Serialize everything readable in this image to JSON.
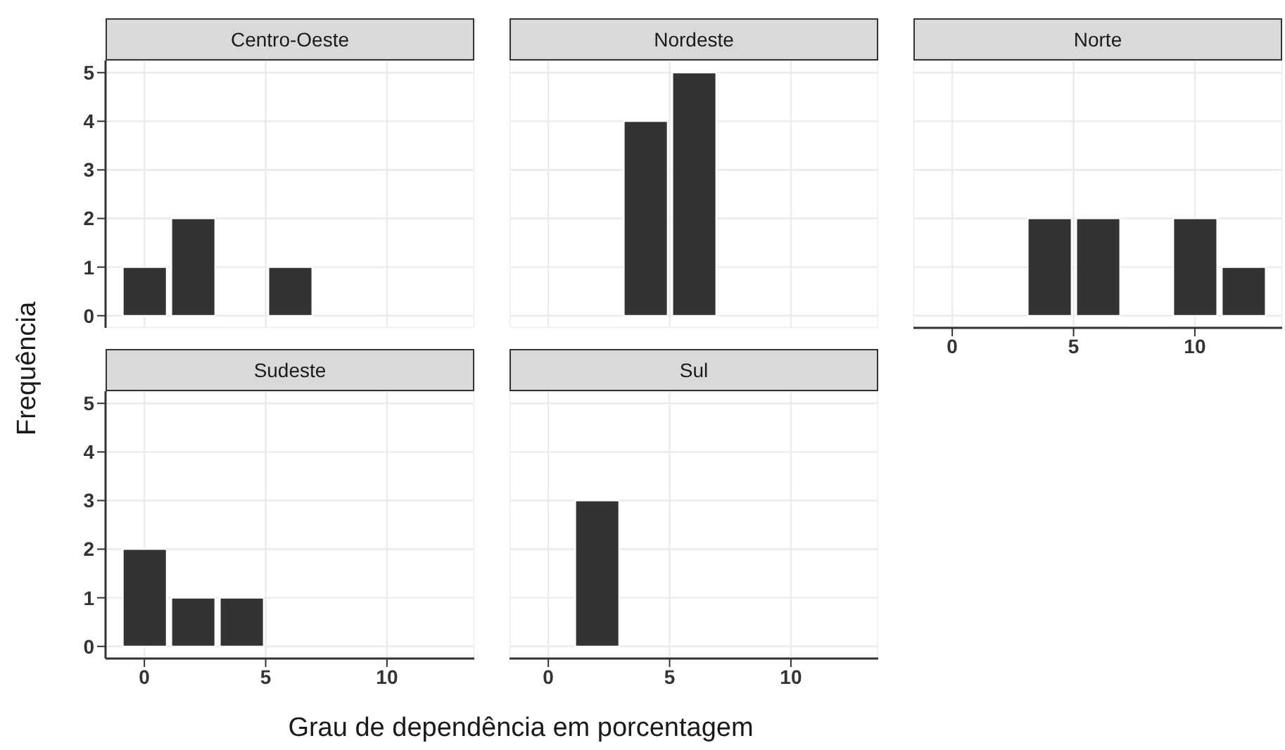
{
  "chart_data": [
    {
      "type": "histogram",
      "title": "Centro-Oeste",
      "ylabel": "Frequência",
      "bins": [
        -1,
        1,
        3,
        5,
        7,
        9,
        11,
        13
      ],
      "values": [
        1,
        2,
        0,
        1,
        0,
        0,
        0
      ],
      "color": "#333333",
      "xlim": [
        -1.6,
        13.6
      ],
      "xticks": [
        0,
        5,
        10
      ],
      "ylim": [
        -0.25,
        5.25
      ],
      "yticks": [
        0,
        1,
        2,
        3,
        4,
        5
      ],
      "grid": true,
      "tick_labels": "y"
    },
    {
      "type": "histogram",
      "title": "Nordeste",
      "bins": [
        -1,
        1,
        3,
        5,
        7,
        9,
        11,
        13
      ],
      "values": [
        0,
        0,
        4,
        5,
        0,
        0,
        0
      ],
      "color": "#333333",
      "xlim": [
        -1.6,
        13.6
      ],
      "xticks": [
        0,
        5,
        10
      ],
      "ylim": [
        -0.25,
        5.25
      ],
      "yticks": [
        0,
        1,
        2,
        3,
        4,
        5
      ],
      "grid": true,
      "tick_labels": false
    },
    {
      "type": "histogram",
      "title": "Norte",
      "bins": [
        -1,
        1,
        3,
        5,
        7,
        9,
        11,
        13
      ],
      "values": [
        0,
        0,
        2,
        2,
        0,
        2,
        1
      ],
      "color": "#333333",
      "xlim": [
        -1.6,
        13.6
      ],
      "xticks": [
        0,
        5,
        10
      ],
      "ylim": [
        -0.25,
        5.25
      ],
      "yticks": [
        0,
        1,
        2,
        3,
        4,
        5
      ],
      "grid": true,
      "tick_labels": "x"
    },
    {
      "type": "histogram",
      "title": "Sudeste",
      "xlabel": "Grau de dependência em porcentagem",
      "bins": [
        -1,
        1,
        3,
        5,
        7,
        9,
        11,
        13
      ],
      "values": [
        2,
        1,
        1,
        0,
        0,
        0,
        0
      ],
      "color": "#333333",
      "xlim": [
        -1.6,
        13.6
      ],
      "xticks": [
        0,
        5,
        10
      ],
      "ylim": [
        -0.25,
        5.25
      ],
      "yticks": [
        0,
        1,
        2,
        3,
        4,
        5
      ],
      "grid": true
    },
    {
      "type": "histogram",
      "title": "Sul",
      "bins": [
        -1,
        1,
        3,
        5,
        7,
        9,
        11,
        13
      ],
      "values": [
        0,
        3,
        0,
        0,
        0,
        0,
        0
      ],
      "color": "#333333",
      "xlim": [
        -1.6,
        13.6
      ],
      "xticks": [
        0,
        5,
        10
      ],
      "ylim": [
        -0.25,
        5.25
      ],
      "yticks": [
        0,
        1,
        2,
        3,
        4,
        5
      ],
      "grid": true,
      "tick_labels": "x"
    }
  ]
}
